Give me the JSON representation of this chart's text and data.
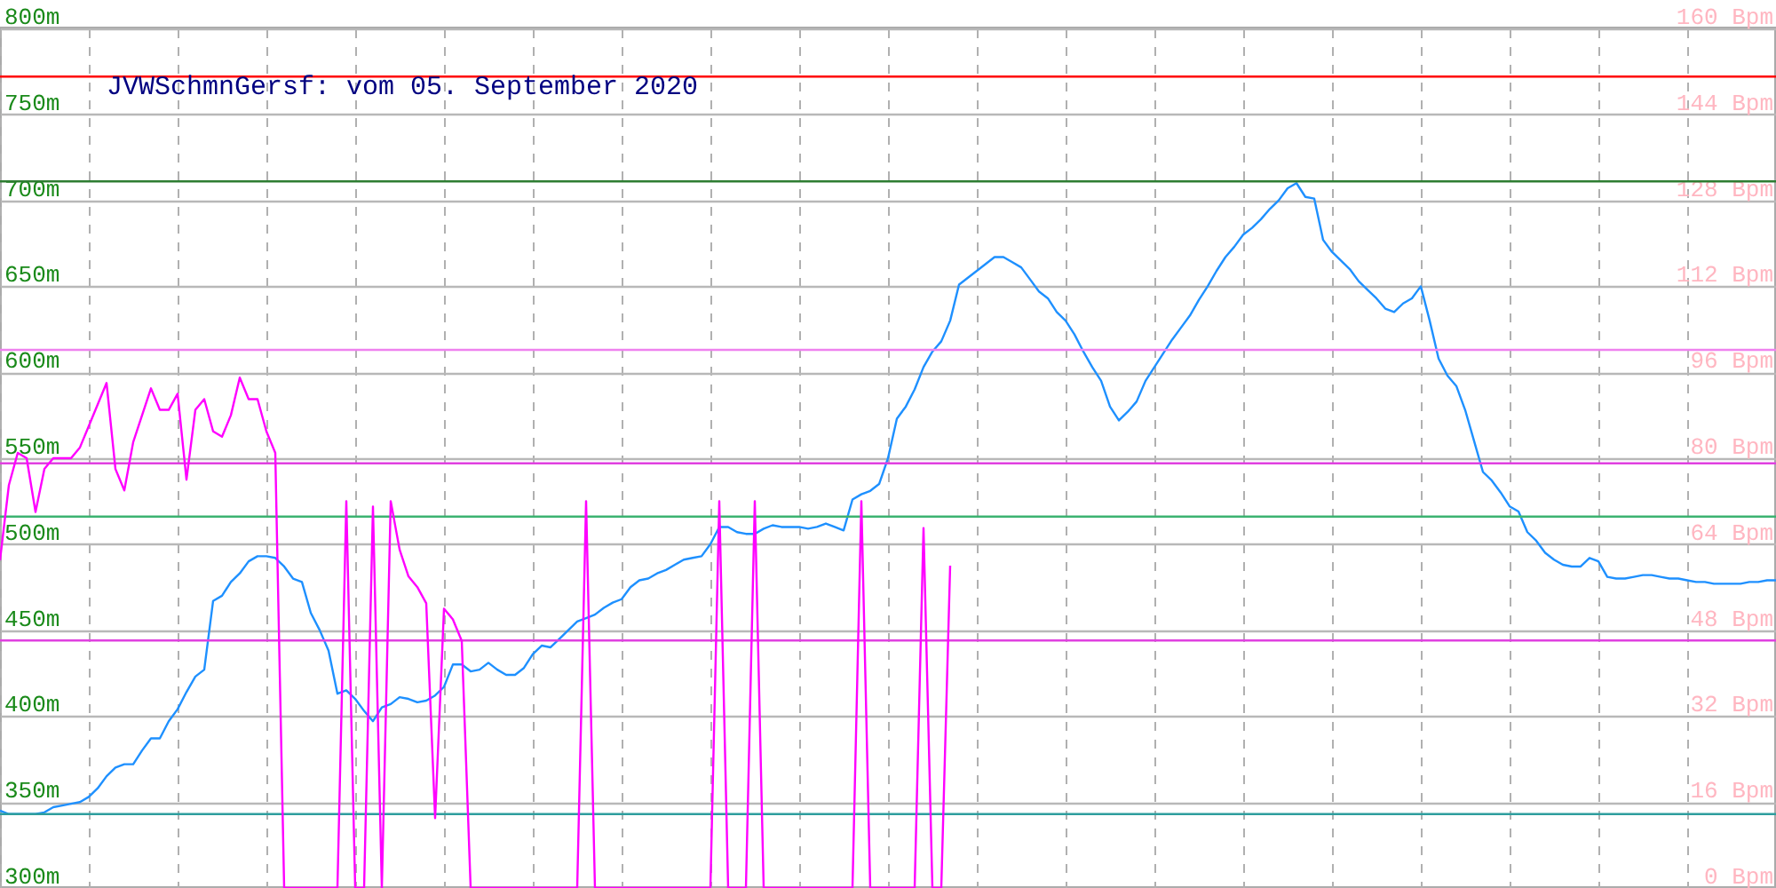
{
  "chart_data": {
    "type": "line",
    "title": "JVWSchmnGersf: vom 05. September 2020",
    "categories": [
      null,
      null,
      null,
      null,
      null,
      null,
      null,
      null,
      null,
      null,
      null,
      null,
      null,
      null,
      null,
      null,
      null,
      null,
      null,
      null,
      null,
      null,
      null,
      null,
      null,
      null,
      null,
      null,
      null,
      null,
      null,
      null,
      null,
      null,
      null,
      null,
      null,
      null,
      null,
      null,
      null,
      null,
      null,
      null,
      null,
      null,
      null,
      null,
      null,
      null,
      null,
      null,
      null,
      null,
      null,
      null,
      null,
      null,
      null,
      null,
      null,
      null,
      null,
      null,
      null,
      null,
      null,
      null,
      null,
      null,
      null,
      null,
      null,
      null,
      null,
      null,
      null,
      null,
      null,
      null,
      null,
      null,
      null,
      null,
      null,
      null,
      null,
      null,
      null,
      null,
      null,
      null,
      null,
      null,
      null,
      null,
      null,
      null,
      null,
      null,
      null,
      null,
      null,
      null,
      null,
      null,
      null,
      null,
      null,
      null,
      null,
      null,
      null,
      null,
      null,
      null,
      null,
      null,
      null,
      null,
      null,
      null,
      null,
      null,
      null,
      null,
      null,
      null,
      null,
      null,
      null,
      null,
      null,
      null,
      null,
      null,
      null,
      null,
      null,
      null,
      null,
      null,
      null,
      null,
      null,
      null,
      null,
      null,
      null,
      null,
      null,
      null,
      null,
      null,
      null,
      null,
      null,
      null,
      null,
      null,
      null,
      null,
      null,
      null,
      null,
      null,
      null,
      null,
      null,
      null,
      null,
      null,
      null,
      null,
      null,
      null,
      null,
      null,
      null,
      null,
      null,
      null,
      null,
      null,
      null,
      null,
      null,
      null,
      null,
      null,
      null,
      null,
      null,
      null,
      null,
      null,
      null,
      null,
      null,
      null,
      null
    ],
    "series": [
      {
        "color": "#1e90ff",
        "axis": "y",
        "values": [
          345,
          343,
          343,
          343,
          343,
          344,
          347,
          348,
          349,
          350,
          353,
          358,
          365,
          370,
          372,
          372,
          380,
          387,
          387,
          397,
          404,
          414,
          423,
          427,
          467,
          470,
          478,
          483,
          490,
          493,
          493,
          492,
          487,
          480,
          478,
          460,
          450,
          438,
          413,
          415,
          410,
          403,
          397,
          405,
          407,
          411,
          410,
          408,
          409,
          412,
          417,
          430,
          430,
          426,
          427,
          431,
          427,
          424,
          424,
          428,
          436,
          441,
          440,
          445,
          450,
          455,
          457,
          459,
          463,
          466,
          468,
          475,
          479,
          480,
          483,
          485,
          488,
          491,
          492,
          493,
          500,
          510,
          510,
          507,
          506,
          506,
          509,
          511,
          510,
          510,
          510,
          509,
          510,
          512,
          510,
          508,
          526,
          529,
          531,
          535,
          550,
          573,
          580,
          590,
          603,
          612,
          618,
          630,
          651,
          655,
          659,
          663,
          667,
          667,
          664,
          661,
          654,
          647,
          643,
          635,
          630,
          622,
          612,
          603,
          595,
          580,
          572,
          577,
          583,
          595,
          603,
          611,
          619,
          626,
          633,
          642,
          650,
          659,
          667,
          673,
          680,
          684,
          689,
          695,
          700,
          707,
          710,
          702,
          701,
          677,
          670,
          665,
          660,
          653,
          648,
          643,
          637,
          635,
          640,
          643,
          650,
          630,
          608,
          598,
          592,
          578,
          560,
          542,
          537,
          530,
          522,
          519,
          507,
          502,
          495,
          491,
          488,
          487,
          487,
          492,
          490,
          481,
          480,
          480,
          481,
          482,
          482,
          481,
          480,
          480,
          479,
          478,
          478,
          477,
          477,
          477,
          477,
          478,
          478,
          479,
          479
        ]
      },
      {
        "color": "#ff00ff",
        "axis": "y2",
        "values": [
          61,
          75,
          81,
          80,
          70,
          78,
          80,
          80,
          80,
          82,
          86,
          90,
          94,
          78,
          74,
          83,
          88,
          93,
          89,
          89,
          92,
          76,
          89,
          91,
          85,
          84,
          88,
          95,
          91,
          91,
          85,
          81,
          0,
          0,
          0,
          0,
          0,
          0,
          0,
          72,
          0,
          0,
          71,
          0,
          72,
          63,
          58,
          56,
          53,
          13,
          52,
          50,
          46,
          0,
          0,
          0,
          0,
          0,
          0,
          0,
          0,
          0,
          0,
          0,
          0,
          0,
          72,
          0,
          0,
          0,
          0,
          0,
          0,
          0,
          0,
          0,
          0,
          0,
          0,
          0,
          0,
          72,
          0,
          0,
          0,
          72,
          0,
          0,
          0,
          0,
          0,
          0,
          0,
          0,
          0,
          0,
          0,
          72,
          0,
          0,
          0,
          0,
          0,
          0,
          67,
          0,
          0,
          60,
          null,
          null,
          null,
          null,
          null,
          null,
          null,
          null,
          null,
          null,
          null,
          null,
          null,
          null,
          null,
          null,
          null,
          null,
          null,
          null,
          null,
          null,
          null,
          null,
          null,
          null,
          null,
          null,
          null,
          null,
          null,
          null,
          null,
          null,
          null,
          null,
          null,
          null,
          null,
          null,
          null,
          null,
          null,
          null,
          null,
          null,
          null,
          null,
          null,
          null,
          null,
          null,
          null,
          null,
          null,
          null,
          null,
          null,
          null,
          null,
          null,
          null,
          null,
          null,
          null,
          null,
          null,
          null,
          null,
          null,
          null,
          null,
          null,
          null,
          null,
          null,
          null,
          null,
          null,
          null,
          null,
          null,
          null,
          null,
          null,
          null,
          null,
          null,
          null,
          null,
          null,
          null,
          null
        ]
      }
    ],
    "ylim": [
      300,
      800
    ],
    "yticks": [
      {
        "value": 300,
        "label": "300m"
      },
      {
        "value": 350,
        "label": "350m"
      },
      {
        "value": 400,
        "label": "400m"
      },
      {
        "value": 450,
        "label": "450m"
      },
      {
        "value": 500,
        "label": "500m"
      },
      {
        "value": 550,
        "label": "550m"
      },
      {
        "value": 600,
        "label": "600m"
      },
      {
        "value": 650,
        "label": "650m"
      },
      {
        "value": 700,
        "label": "700m"
      },
      {
        "value": 750,
        "label": "750m"
      },
      {
        "value": 800,
        "label": "800m"
      }
    ],
    "y2lim": [
      0,
      160
    ],
    "y2ticks": [
      {
        "value": 0,
        "label": "0 Bpm"
      },
      {
        "value": 16,
        "label": "16 Bpm"
      },
      {
        "value": 32,
        "label": "32 Bpm"
      },
      {
        "value": 48,
        "label": "48 Bpm"
      },
      {
        "value": 64,
        "label": "64 Bpm"
      },
      {
        "value": 80,
        "label": "80 Bpm"
      },
      {
        "value": 96,
        "label": "96 Bpm"
      },
      {
        "value": 112,
        "label": "112 Bpm"
      },
      {
        "value": 128,
        "label": "128 Bpm"
      },
      {
        "value": 144,
        "label": "144 Bpm"
      },
      {
        "value": 160,
        "label": "160 Bpm"
      }
    ],
    "ref_lines": [
      {
        "axis": "y",
        "value": 772,
        "color": "#ff0000"
      },
      {
        "axis": "y",
        "value": 711,
        "color": "#2e7d32"
      },
      {
        "axis": "y",
        "value": 613,
        "color": "#ee82ee"
      },
      {
        "axis": "y",
        "value": 547,
        "color": "#e040e0"
      },
      {
        "axis": "y",
        "value": 516,
        "color": "#3cb371"
      },
      {
        "axis": "y",
        "value": 444,
        "color": "#e040e0"
      },
      {
        "axis": "y",
        "value": 343,
        "color": "#2e9e9e"
      }
    ],
    "grid": true,
    "tick_labels": "y",
    "marker": "none",
    "line_style": "solid"
  }
}
